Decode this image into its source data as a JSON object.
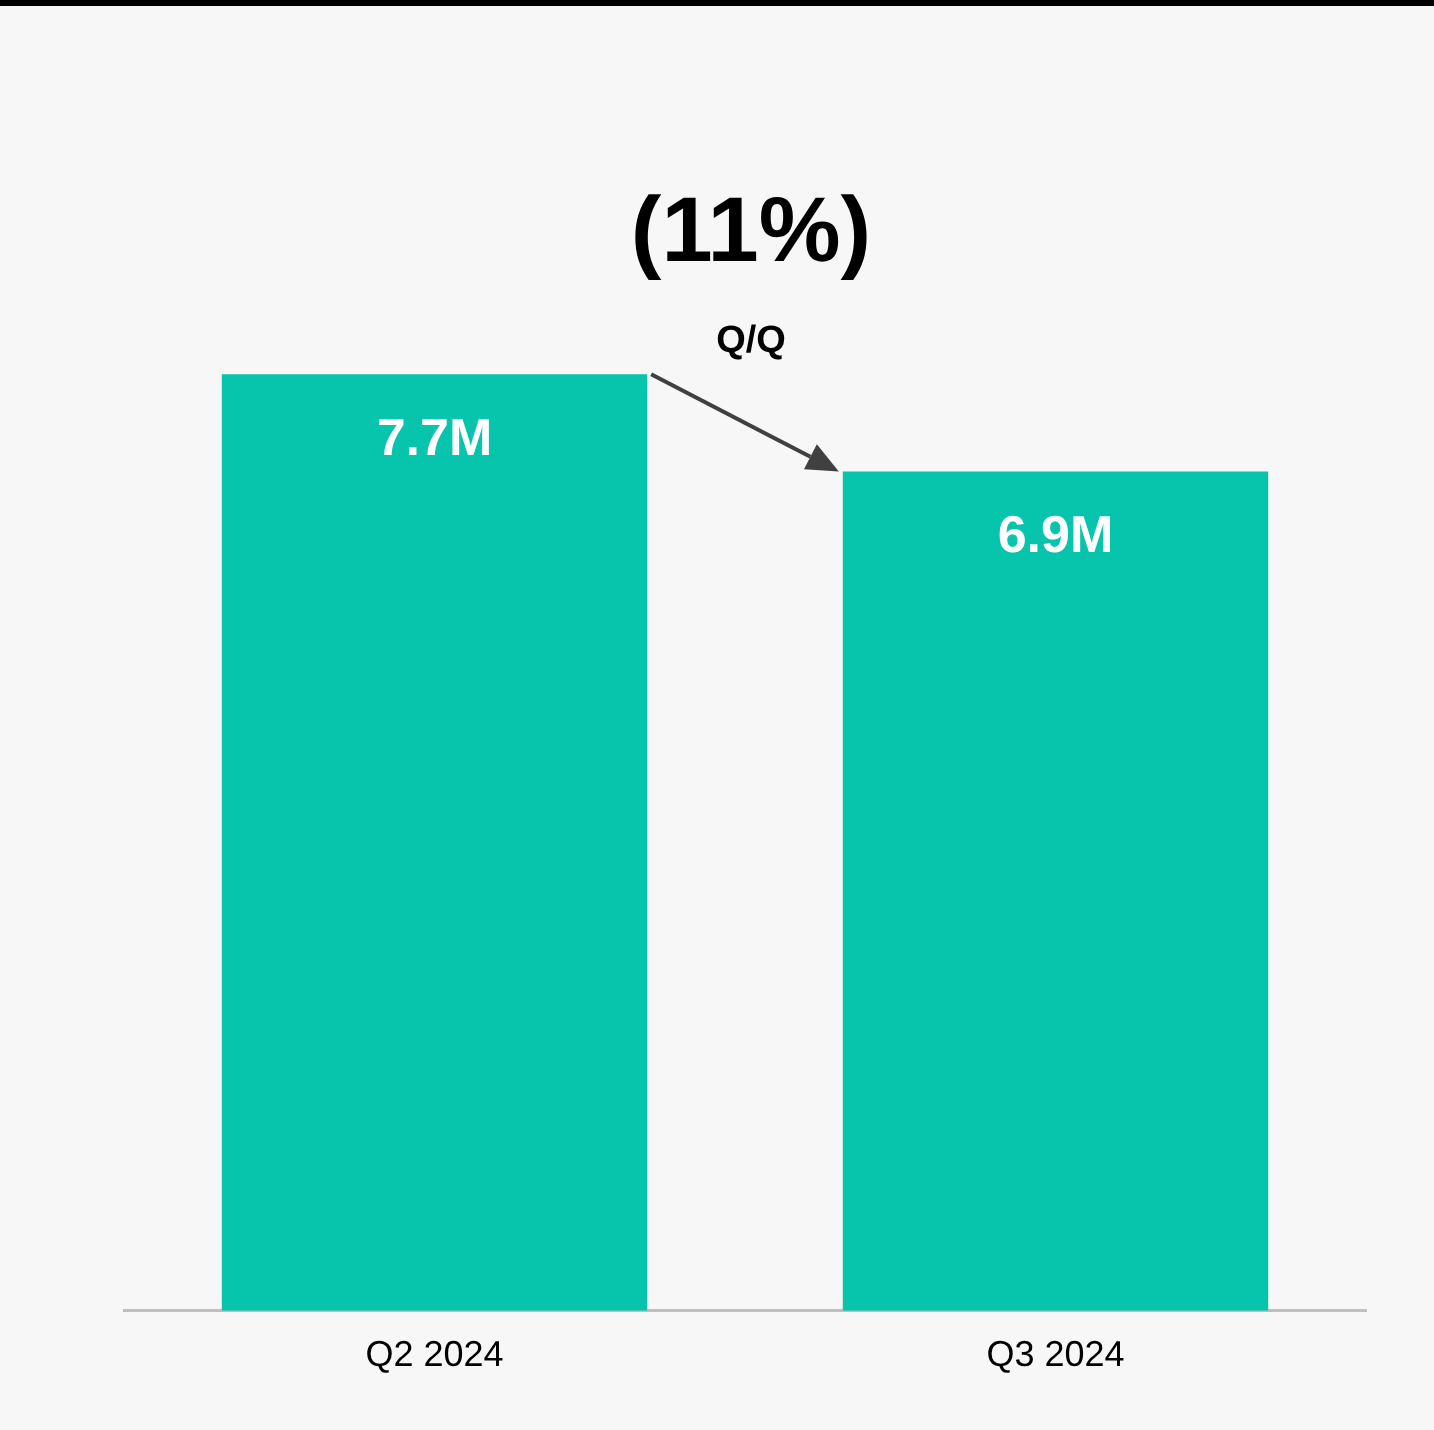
{
  "chart_data": {
    "type": "bar",
    "categories": [
      "Q2 2024",
      "Q3 2024"
    ],
    "values": [
      7.7,
      6.9
    ],
    "value_labels": [
      "7.7M",
      "6.9M"
    ],
    "color": "#07c4ac",
    "annotations": [
      "(11%)",
      "Q/Q"
    ],
    "legend": false,
    "grid": false,
    "tick_labels": "x"
  }
}
